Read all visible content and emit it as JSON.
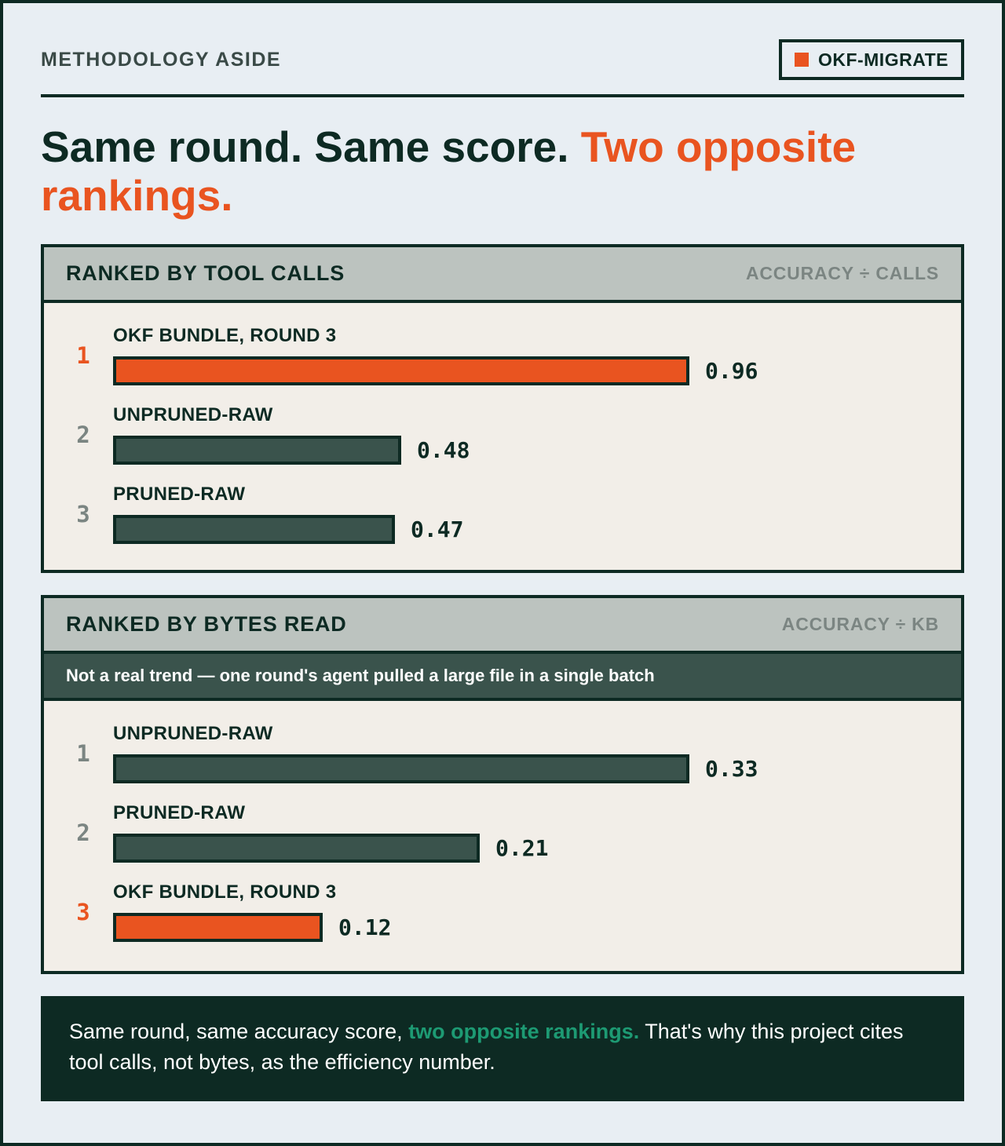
{
  "header": {
    "eyebrow": "METHODOLOGY ASIDE",
    "tag_label": "OKF-MIGRATE",
    "tag_color": "#e95420"
  },
  "headline": {
    "part1": "Same round. Same score. ",
    "part2": "Two opposite rankings."
  },
  "colors": {
    "accent": "#e95420",
    "bar": "#3a534c",
    "ink": "#0d2a23",
    "footer_emphasis": "#1d9a73"
  },
  "chart_data": [
    {
      "type": "bar",
      "orientation": "horizontal",
      "title": "RANKED BY TOOL CALLS",
      "metric": "ACCURACY ÷ CALLS",
      "categories": [
        "OKF BUNDLE, ROUND 3",
        "UNPRUNED-RAW",
        "PRUNED-RAW"
      ],
      "ranks": [
        "1",
        "2",
        "3"
      ],
      "values": [
        0.96,
        0.48,
        0.47
      ],
      "labels": [
        "0.96",
        "0.48",
        "0.47"
      ],
      "highlight": [
        true,
        false,
        false
      ]
    },
    {
      "type": "bar",
      "orientation": "horizontal",
      "title": "RANKED BY BYTES READ",
      "metric": "ACCURACY ÷ KB",
      "note": "Not a real trend — one round's agent pulled a large file in a single batch",
      "categories": [
        "UNPRUNED-RAW",
        "PRUNED-RAW",
        "OKF BUNDLE, ROUND 3"
      ],
      "ranks": [
        "1",
        "2",
        "3"
      ],
      "values": [
        0.33,
        0.21,
        0.12
      ],
      "labels": [
        "0.33",
        "0.21",
        "0.12"
      ],
      "highlight": [
        false,
        false,
        true
      ]
    }
  ],
  "footer": {
    "part1": "Same round, same accuracy score, ",
    "emphasis": "two opposite rankings.",
    "part2": " That's why this project cites tool calls, not bytes, as the efficiency number."
  }
}
